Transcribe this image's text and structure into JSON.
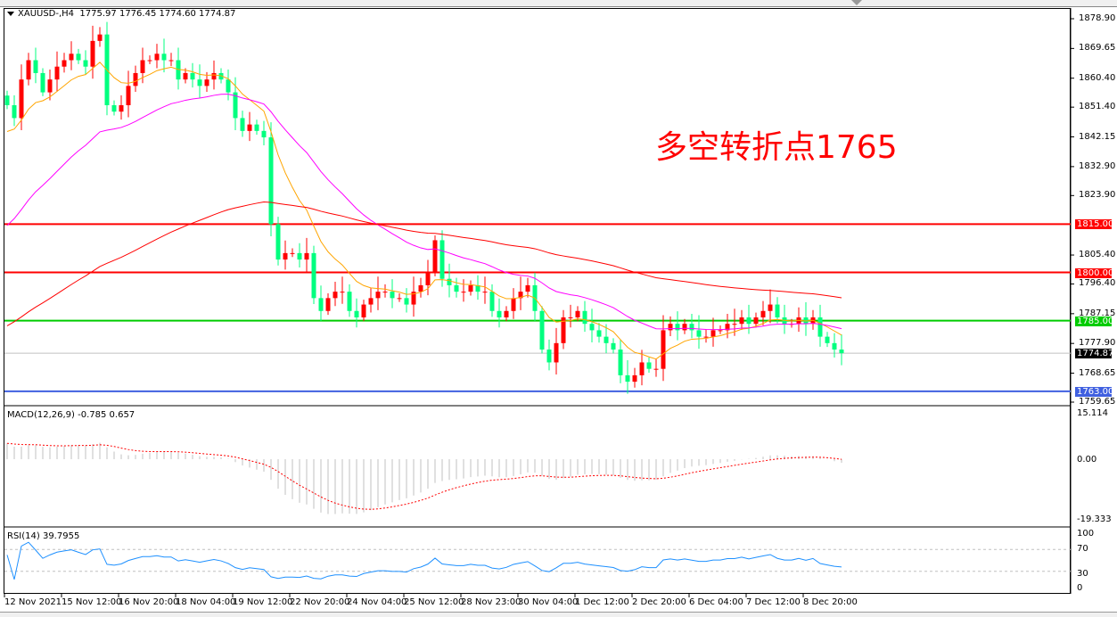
{
  "header": {
    "symbol": "XAUUSD-,H4",
    "open": "1775.97",
    "high": "1776.45",
    "low": "1774.60",
    "close": "1774.87"
  },
  "annotation": "多空转折点1765",
  "price_axis": [
    "1878.90",
    "1869.65",
    "1860.40",
    "1851.40",
    "1842.15",
    "1832.90",
    "1823.90",
    "1805.40",
    "1796.40",
    "1787.15",
    "1777.90",
    "1768.65",
    "1759.65"
  ],
  "levels": [
    {
      "label": "1815.00",
      "color": "#ff0000"
    },
    {
      "label": "1800.00",
      "color": "#ff0000"
    },
    {
      "label": "1785.00",
      "color": "#00cc00"
    },
    {
      "label": "1763.00",
      "color": "#4060e0"
    }
  ],
  "current_price": "1774.87",
  "macd": {
    "label": "MACD(12,26,9) -0.785 0.657",
    "axis": [
      "15.114",
      "0.00",
      "-19.333"
    ]
  },
  "rsi": {
    "label": "RSI(14) 39.7955",
    "axis": [
      "100",
      "70",
      "30",
      "0"
    ]
  },
  "time_axis": [
    "12 Nov 2021",
    "15 Nov 12:00",
    "16 Nov 20:00",
    "18 Nov 04:00",
    "19 Nov 12:00",
    "22 Nov 20:00",
    "24 Nov 04:00",
    "25 Nov 12:00",
    "28 Nov 23:00",
    "30 Nov 04:00",
    "1 Dec 12:00",
    "2 Dec 20:00",
    "6 Dec 04:00",
    "7 Dec 12:00",
    "8 Dec 20:00"
  ],
  "colors": {
    "bull": "#ff0000",
    "bear": "#00ff7f",
    "ma_fast": "#ffa500",
    "ma_mid": "#ff00ff",
    "ma_slow": "#ff0000",
    "rsi": "#1e90ff",
    "macd_signal": "#ff0000",
    "macd_hist": "#c0c0c0"
  },
  "closes": [
    1852,
    1848,
    1860,
    1866,
    1862,
    1856,
    1860,
    1864,
    1866,
    1868,
    1866,
    1864,
    1872,
    1874,
    1852,
    1850,
    1852,
    1858,
    1862,
    1866,
    1866,
    1868,
    1866,
    1866,
    1860,
    1862,
    1860,
    1858,
    1860,
    1862,
    1860,
    1856,
    1848,
    1844,
    1846,
    1844,
    1842,
    1815,
    1804,
    1806,
    1806,
    1804,
    1806,
    1792,
    1788,
    1792,
    1794,
    1794,
    1788,
    1786,
    1790,
    1792,
    1794,
    1794,
    1792,
    1792,
    1790,
    1794,
    1796,
    1800,
    1810,
    1798,
    1796,
    1794,
    1794,
    1796,
    1794,
    1794,
    1788,
    1786,
    1788,
    1792,
    1794,
    1796,
    1788,
    1776,
    1772,
    1778,
    1786,
    1786,
    1788,
    1784,
    1782,
    1780,
    1778,
    1776,
    1768,
    1766,
    1768,
    1772,
    1770,
    1770,
    1782,
    1784,
    1782,
    1784,
    1782,
    1780,
    1780,
    1782,
    1782,
    1784,
    1784,
    1786,
    1784,
    1786,
    1788,
    1790,
    1786,
    1784,
    1784,
    1786,
    1784,
    1786,
    1780,
    1778,
    1776,
    1774.87
  ]
}
